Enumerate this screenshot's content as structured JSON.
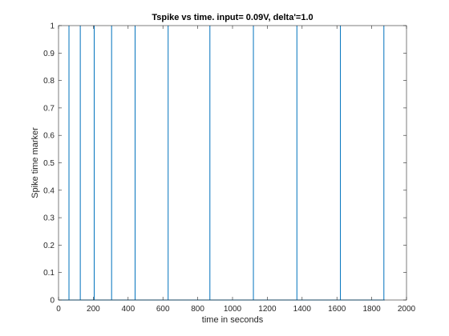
{
  "chart_data": {
    "type": "line",
    "title": "Tspike vs time. input= 0.09V, delta'=1.0",
    "xlabel": "time in seconds",
    "ylabel": "Spike time marker",
    "xlim": [
      0,
      2000
    ],
    "ylim": [
      0,
      1
    ],
    "xticks": [
      "0",
      "200",
      "400",
      "600",
      "800",
      "1000",
      "1200",
      "1400",
      "1600",
      "1800",
      "2000"
    ],
    "yticks": [
      "0",
      "0.1",
      "0.2",
      "0.3",
      "0.4",
      "0.5",
      "0.6",
      "0.7",
      "0.8",
      "0.9",
      "1"
    ],
    "grid": false,
    "legend": "none",
    "series": [
      {
        "color": "#0072BD",
        "spike_times": [
          60,
          125,
          205,
          305,
          440,
          630,
          870,
          1120,
          1370,
          1620,
          1870
        ],
        "x_end": 1875
      }
    ]
  }
}
